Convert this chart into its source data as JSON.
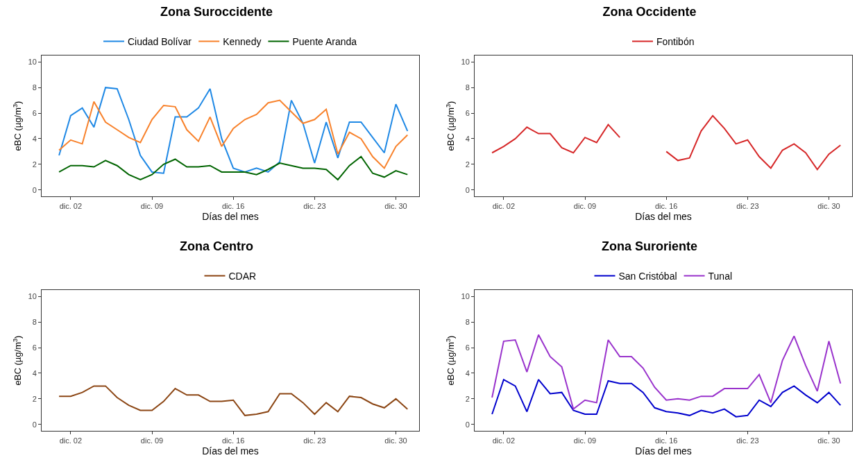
{
  "chart_data": [
    {
      "type": "line",
      "title": "Zona Suroccidente",
      "xlabel": "Días del mes",
      "ylabel": "eBC (µg/m$^{3}$)",
      "legend": "top",
      "grid": false,
      "x": [
        "--12-01",
        "--12-02",
        "--12-03",
        "--12-04",
        "--12-05",
        "--12-06",
        "--12-07",
        "--12-08",
        "--12-09",
        "--12-10",
        "--12-11",
        "--12-12",
        "--12-13",
        "--12-14",
        "--12-15",
        "--12-16",
        "--12-17",
        "--12-18",
        "--12-19",
        "--12-20",
        "--12-21",
        "--12-22",
        "--12-23",
        "--12-24",
        "--12-25",
        "--12-26",
        "--12-27",
        "--12-28",
        "--12-29",
        "--12-30",
        "--12-31"
      ],
      "xlim": [
        "--11-29T12:00",
        "--12-31T23:59"
      ],
      "xticks": [
        {
          "value": "--12-02",
          "label": "dic. 02"
        },
        {
          "value": "--12-09",
          "label": "dic. 09"
        },
        {
          "value": "--12-16",
          "label": "dic. 16"
        },
        {
          "value": "--12-23",
          "label": "dic. 23"
        },
        {
          "value": "--12-30",
          "label": "dic. 30"
        }
      ],
      "ylim": [
        -0.5,
        10.5
      ],
      "yticks": [
        0,
        2,
        4,
        6,
        8,
        10
      ],
      "series": [
        {
          "name": "Ciudad Bolívar",
          "color": "#1e88e5",
          "values": [
            2.7,
            5.8,
            6.4,
            4.9,
            8.0,
            7.9,
            5.5,
            2.7,
            1.4,
            1.3,
            5.7,
            5.7,
            6.4,
            7.9,
            4.0,
            1.7,
            1.4,
            1.7,
            1.4,
            2.2,
            7.0,
            5.2,
            2.1,
            5.3,
            2.5,
            5.3,
            5.3,
            4.1,
            2.9,
            6.7,
            4.6
          ]
        },
        {
          "name": "Kennedy",
          "color": "#f8812a",
          "values": [
            3.1,
            3.9,
            3.6,
            6.9,
            5.3,
            4.7,
            4.1,
            3.7,
            5.5,
            6.6,
            6.5,
            4.7,
            3.8,
            5.7,
            3.4,
            4.8,
            5.5,
            5.9,
            6.8,
            7.0,
            6.1,
            5.2,
            5.5,
            6.3,
            2.8,
            4.5,
            4.0,
            2.6,
            1.7,
            3.4,
            4.3
          ]
        },
        {
          "name": "Puente Aranda",
          "color": "#006400",
          "values": [
            1.4,
            1.9,
            1.9,
            1.8,
            2.3,
            1.9,
            1.2,
            0.8,
            1.2,
            2.0,
            2.4,
            1.8,
            1.8,
            1.9,
            1.4,
            1.4,
            1.4,
            1.2,
            1.6,
            2.1,
            1.9,
            1.7,
            1.7,
            1.6,
            0.8,
            1.9,
            2.6,
            1.3,
            1.0,
            1.5,
            1.2
          ]
        }
      ]
    },
    {
      "type": "line",
      "title": "Zona Occidente",
      "xlabel": "Días del mes",
      "ylabel": "eBC (µg/m$^{3}$)",
      "legend": "top",
      "grid": false,
      "x": [
        "--12-01",
        "--12-02",
        "--12-03",
        "--12-04",
        "--12-05",
        "--12-06",
        "--12-07",
        "--12-08",
        "--12-09",
        "--12-10",
        "--12-11",
        "--12-12",
        "--12-13",
        "--12-14",
        "--12-15",
        "--12-16",
        "--12-17",
        "--12-18",
        "--12-19",
        "--12-20",
        "--12-21",
        "--12-22",
        "--12-23",
        "--12-24",
        "--12-25",
        "--12-26",
        "--12-27",
        "--12-28",
        "--12-29",
        "--12-30",
        "--12-31"
      ],
      "xlim": [
        "--11-29T12:00",
        "--12-31T23:59"
      ],
      "xticks": [
        {
          "value": "--12-02",
          "label": "dic. 02"
        },
        {
          "value": "--12-09",
          "label": "dic. 09"
        },
        {
          "value": "--12-16",
          "label": "dic. 16"
        },
        {
          "value": "--12-23",
          "label": "dic. 23"
        },
        {
          "value": "--12-30",
          "label": "dic. 30"
        }
      ],
      "ylim": [
        -0.5,
        10.5
      ],
      "yticks": [
        0,
        2,
        4,
        6,
        8,
        10
      ],
      "series": [
        {
          "name": "Fontibón",
          "color": "#d62728",
          "values": [
            2.9,
            3.4,
            4.0,
            4.9,
            4.4,
            4.4,
            3.3,
            2.9,
            4.1,
            3.7,
            5.1,
            4.1,
            null,
            null,
            null,
            3.0,
            2.3,
            2.5,
            4.6,
            5.8,
            4.8,
            3.6,
            3.9,
            2.6,
            1.7,
            3.1,
            3.6,
            2.9,
            1.6,
            2.8,
            3.5
          ]
        }
      ]
    },
    {
      "type": "line",
      "title": "Zona Centro",
      "xlabel": "Días del mes",
      "ylabel": "eBC (µg/m$^{3}$)",
      "legend": "top",
      "grid": false,
      "x": [
        "--12-01",
        "--12-02",
        "--12-03",
        "--12-04",
        "--12-05",
        "--12-06",
        "--12-07",
        "--12-08",
        "--12-09",
        "--12-10",
        "--12-11",
        "--12-12",
        "--12-13",
        "--12-14",
        "--12-15",
        "--12-16",
        "--12-17",
        "--12-18",
        "--12-19",
        "--12-20",
        "--12-21",
        "--12-22",
        "--12-23",
        "--12-24",
        "--12-25",
        "--12-26",
        "--12-27",
        "--12-28",
        "--12-29",
        "--12-30",
        "--12-31"
      ],
      "xlim": [
        "--11-29T12:00",
        "--12-31T23:59"
      ],
      "xticks": [
        {
          "value": "--12-02",
          "label": "dic. 02"
        },
        {
          "value": "--12-09",
          "label": "dic. 09"
        },
        {
          "value": "--12-16",
          "label": "dic. 16"
        },
        {
          "value": "--12-23",
          "label": "dic. 23"
        },
        {
          "value": "--12-30",
          "label": "dic. 30"
        }
      ],
      "ylim": [
        -0.5,
        10.5
      ],
      "yticks": [
        0,
        2,
        4,
        6,
        8,
        10
      ],
      "series": [
        {
          "name": "CDAR",
          "color": "#8b4513",
          "values": [
            2.2,
            2.2,
            2.5,
            3.0,
            3.0,
            2.1,
            1.5,
            1.1,
            1.1,
            1.8,
            2.8,
            2.3,
            2.3,
            1.8,
            1.8,
            1.9,
            0.7,
            0.8,
            1.0,
            2.4,
            2.4,
            1.7,
            0.8,
            1.7,
            1.0,
            2.2,
            2.1,
            1.6,
            1.3,
            2.0,
            1.2
          ]
        }
      ]
    },
    {
      "type": "line",
      "title": "Zona Suroriente",
      "xlabel": "Días del mes",
      "ylabel": "eBC (µg/m$^{3}$)",
      "legend": "top",
      "grid": false,
      "x": [
        "--12-01",
        "--12-02",
        "--12-03",
        "--12-04",
        "--12-05",
        "--12-06",
        "--12-07",
        "--12-08",
        "--12-09",
        "--12-10",
        "--12-11",
        "--12-12",
        "--12-13",
        "--12-14",
        "--12-15",
        "--12-16",
        "--12-17",
        "--12-18",
        "--12-19",
        "--12-20",
        "--12-21",
        "--12-22",
        "--12-23",
        "--12-24",
        "--12-25",
        "--12-26",
        "--12-27",
        "--12-28",
        "--12-29",
        "--12-30",
        "--12-31"
      ],
      "xlim": [
        "--11-29T12:00",
        "--12-31T23:59"
      ],
      "xticks": [
        {
          "value": "--12-02",
          "label": "dic. 02"
        },
        {
          "value": "--12-09",
          "label": "dic. 09"
        },
        {
          "value": "--12-16",
          "label": "dic. 16"
        },
        {
          "value": "--12-23",
          "label": "dic. 23"
        },
        {
          "value": "--12-30",
          "label": "dic. 30"
        }
      ],
      "ylim": [
        -0.5,
        10.5
      ],
      "yticks": [
        0,
        2,
        4,
        6,
        8,
        10
      ],
      "series": [
        {
          "name": "San Cristóbal",
          "color": "#0000cd",
          "values": [
            0.8,
            3.5,
            3.0,
            1.0,
            3.5,
            2.4,
            2.5,
            1.1,
            0.8,
            0.8,
            3.4,
            3.2,
            3.2,
            2.5,
            1.3,
            1.0,
            0.9,
            0.7,
            1.1,
            0.9,
            1.2,
            0.6,
            0.7,
            1.9,
            1.4,
            2.5,
            3.0,
            2.3,
            1.7,
            2.5,
            1.5
          ]
        },
        {
          "name": "Tunal",
          "color": "#9932cc",
          "values": [
            2.1,
            6.5,
            6.6,
            4.1,
            7.0,
            5.3,
            4.5,
            1.2,
            1.9,
            1.7,
            6.6,
            5.3,
            5.3,
            4.4,
            2.9,
            1.9,
            2.0,
            1.9,
            2.2,
            2.2,
            2.8,
            2.8,
            2.8,
            3.9,
            1.7,
            5.0,
            6.9,
            4.6,
            2.6,
            6.5,
            3.2
          ]
        }
      ]
    }
  ]
}
